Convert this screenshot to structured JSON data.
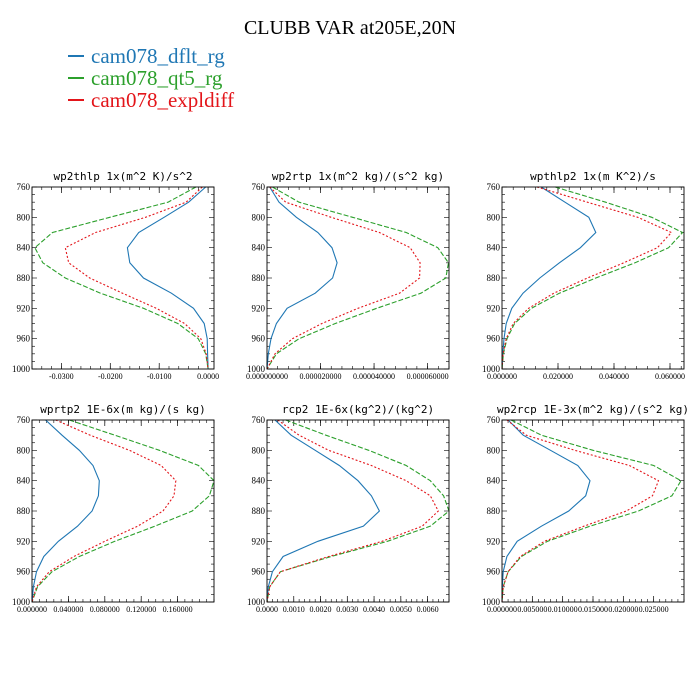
{
  "title": "CLUBB VAR at205E,20N",
  "legend": [
    {
      "label": "cam078_dflt_rg",
      "color": "#1f77b4"
    },
    {
      "label": "cam078_qt5_rg",
      "color": "#2ca02c"
    },
    {
      "label": "cam078_expldiff",
      "color": "#e3151a"
    }
  ],
  "chart_data": [
    {
      "type": "line",
      "title": "wp2thlp  1x(m^2 K)/s^2",
      "ylim": [
        760,
        1000
      ],
      "yticks": [
        760,
        800,
        840,
        880,
        920,
        960,
        1000
      ],
      "y_inverted": true,
      "xlim": [
        -0.036,
        0.0012
      ],
      "xticks": [
        -0.03,
        -0.02,
        -0.01,
        0.0
      ],
      "xtick_labels": [
        "-0.0300",
        "-0.0200",
        "-0.0100",
        "0.0000"
      ],
      "y": [
        760,
        780,
        800,
        820,
        840,
        860,
        880,
        900,
        920,
        940,
        960,
        980,
        1000
      ],
      "series": [
        {
          "name": "cam078_dflt_rg",
          "values": [
            -0.0005,
            -0.004,
            -0.009,
            -0.0142,
            -0.0165,
            -0.016,
            -0.0132,
            -0.0075,
            -0.003,
            -0.0008,
            -0.0002,
            -0.0001,
            0.0
          ]
        },
        {
          "name": "cam078_qt5_rg",
          "values": [
            -0.0025,
            -0.0082,
            -0.0201,
            -0.0318,
            -0.0354,
            -0.0338,
            -0.0292,
            -0.022,
            -0.0132,
            -0.0062,
            -0.002,
            -0.0005,
            0.0
          ]
        },
        {
          "name": "cam078_expldiff",
          "values": [
            -0.0012,
            -0.0045,
            -0.0128,
            -0.023,
            -0.0292,
            -0.0285,
            -0.0242,
            -0.0175,
            -0.0106,
            -0.0048,
            -0.0015,
            -0.0004,
            0.0
          ]
        }
      ]
    },
    {
      "type": "line",
      "title": "wp2rtp  1x(m^2 kg)/(s^2 kg)",
      "ylim": [
        760,
        1000
      ],
      "yticks": [
        760,
        800,
        840,
        880,
        920,
        960,
        1000
      ],
      "y_inverted": true,
      "xlim": [
        0.0,
        6.8e-05
      ],
      "xticks": [
        0.0,
        2e-05,
        4e-05,
        6e-05
      ],
      "xtick_labels": [
        "0.000000000",
        "0.000020000",
        "0.000040000",
        "0.000060000"
      ],
      "y": [
        760,
        780,
        800,
        820,
        840,
        860,
        880,
        900,
        920,
        940,
        960,
        980,
        1000
      ],
      "series": [
        {
          "name": "cam078_dflt_rg",
          "values": [
            1e-06,
            4.5e-06,
            1.1e-05,
            1.9e-05,
            2.43e-05,
            2.62e-05,
            2.45e-05,
            1.8e-05,
            7.5e-06,
            3.5e-06,
            1.5e-06,
            5e-07,
            0.0
          ]
        },
        {
          "name": "cam078_qt5_rg",
          "values": [
            2e-06,
            1.2e-05,
            3.2e-05,
            5.2e-05,
            6.38e-05,
            6.78e-05,
            6.68e-05,
            5.75e-05,
            4.1e-05,
            2.55e-05,
            1.2e-05,
            3.5e-06,
            0.0
          ]
        },
        {
          "name": "cam078_expldiff",
          "values": [
            1e-06,
            7e-06,
            2.4e-05,
            4.2e-05,
            5.35e-05,
            5.72e-05,
            5.7e-05,
            4.95e-05,
            3.4e-05,
            2.05e-05,
            9.5e-06,
            3e-06,
            0.0
          ]
        }
      ]
    },
    {
      "type": "line",
      "title": "wpthlp2  1x(m K^2)/s",
      "ylim": [
        760,
        1000
      ],
      "yticks": [
        760,
        800,
        840,
        880,
        920,
        960,
        1000
      ],
      "y_inverted": true,
      "xlim": [
        0.0,
        0.065
      ],
      "xticks": [
        0.0,
        0.02,
        0.04,
        0.06
      ],
      "xtick_labels": [
        "0.000000",
        "0.020000",
        "0.040000",
        "0.060000"
      ],
      "y": [
        760,
        780,
        800,
        820,
        840,
        860,
        880,
        900,
        920,
        940,
        960,
        980,
        1000
      ],
      "series": [
        {
          "name": "cam078_dflt_rg",
          "values": [
            0.014,
            0.0225,
            0.031,
            0.0335,
            0.028,
            0.0205,
            0.0135,
            0.0075,
            0.0035,
            0.0015,
            0.0007,
            0.0003,
            0.0
          ]
        },
        {
          "name": "cam078_qt5_rg",
          "values": [
            0.019,
            0.037,
            0.0535,
            0.0645,
            0.0595,
            0.0475,
            0.0335,
            0.0205,
            0.0105,
            0.0045,
            0.0018,
            0.0005,
            0.0
          ]
        },
        {
          "name": "cam078_expldiff",
          "values": [
            0.0125,
            0.0305,
            0.0485,
            0.0605,
            0.0555,
            0.0435,
            0.0305,
            0.0185,
            0.0095,
            0.004,
            0.0015,
            0.0004,
            0.0
          ]
        }
      ]
    },
    {
      "type": "line",
      "title": "wprtp2  1E-6x(m kg)/(s kg)",
      "ylim": [
        760,
        1000
      ],
      "yticks": [
        760,
        800,
        840,
        880,
        920,
        960,
        1000
      ],
      "y_inverted": true,
      "xlim": [
        0.0,
        0.2
      ],
      "xticks": [
        0.0,
        0.04,
        0.08,
        0.12,
        0.16
      ],
      "xtick_labels": [
        "0.000000",
        "0.040000",
        "0.080000",
        "0.120000",
        "0.160000"
      ],
      "y": [
        760,
        780,
        800,
        820,
        840,
        860,
        880,
        900,
        920,
        940,
        960,
        980,
        1000
      ],
      "series": [
        {
          "name": "cam078_dflt_rg",
          "values": [
            0.015,
            0.033,
            0.052,
            0.067,
            0.074,
            0.073,
            0.066,
            0.05,
            0.029,
            0.013,
            0.005,
            0.0015,
            0.0
          ]
        },
        {
          "name": "cam078_qt5_rg",
          "values": [
            0.041,
            0.091,
            0.14,
            0.183,
            0.2,
            0.195,
            0.176,
            0.135,
            0.091,
            0.052,
            0.022,
            0.006,
            0.0
          ]
        },
        {
          "name": "cam078_expldiff",
          "values": [
            0.026,
            0.064,
            0.107,
            0.142,
            0.158,
            0.156,
            0.144,
            0.116,
            0.08,
            0.046,
            0.019,
            0.005,
            0.0
          ]
        }
      ]
    },
    {
      "type": "line",
      "title": "rcp2  1E-6x(kg^2)/(kg^2)",
      "ylim": [
        760,
        1000
      ],
      "yticks": [
        760,
        800,
        840,
        880,
        920,
        960,
        1000
      ],
      "y_inverted": true,
      "xlim": [
        0.0,
        0.0068
      ],
      "xticks": [
        0.0,
        0.001,
        0.002,
        0.003,
        0.004,
        0.005,
        0.006
      ],
      "xtick_labels": [
        "0.0000",
        "0.0010",
        "0.0020",
        "0.0030",
        "0.0040",
        "0.0050",
        "0.0060"
      ],
      "y": [
        760,
        780,
        800,
        820,
        840,
        860,
        880,
        900,
        920,
        940,
        960,
        980,
        1000
      ],
      "series": [
        {
          "name": "cam078_dflt_rg",
          "values": [
            0.0003,
            0.0009,
            0.0018,
            0.0027,
            0.0034,
            0.0039,
            0.0042,
            0.0036,
            0.0019,
            0.0006,
            0.0002,
            5e-05,
            0.0
          ]
        },
        {
          "name": "cam078_qt5_rg",
          "values": [
            0.0007,
            0.0022,
            0.0038,
            0.0052,
            0.0061,
            0.0066,
            0.0068,
            0.0061,
            0.0045,
            0.0024,
            0.0005,
            0.0001,
            0.0
          ]
        },
        {
          "name": "cam078_expldiff",
          "values": [
            0.0004,
            0.0012,
            0.0023,
            0.0039,
            0.0052,
            0.0061,
            0.0064,
            0.0058,
            0.0043,
            0.0023,
            0.0005,
            0.0001,
            0.0
          ]
        }
      ]
    },
    {
      "type": "line",
      "title": "wp2rcp  1E-3x(m^2 kg)/(s^2 kg)",
      "ylim": [
        760,
        1000
      ],
      "yticks": [
        760,
        800,
        840,
        880,
        920,
        960,
        1000
      ],
      "y_inverted": true,
      "xlim": [
        0.0,
        0.03
      ],
      "xticks": [
        0.0,
        0.005,
        0.01,
        0.015,
        0.02,
        0.025
      ],
      "xtick_labels": [
        "0.000000",
        "0.005000",
        "0.010000",
        "0.015000",
        "0.020000",
        "0.025000"
      ],
      "y": [
        760,
        780,
        800,
        820,
        840,
        860,
        880,
        900,
        920,
        940,
        960,
        980,
        1000
      ],
      "series": [
        {
          "name": "cam078_dflt_rg",
          "values": [
            0.001,
            0.0035,
            0.008,
            0.0125,
            0.0145,
            0.0138,
            0.011,
            0.0065,
            0.0025,
            0.0008,
            0.0002,
            5e-05,
            0.0
          ]
        },
        {
          "name": "cam078_qt5_rg",
          "values": [
            0.0015,
            0.0065,
            0.015,
            0.025,
            0.0295,
            0.028,
            0.0225,
            0.0145,
            0.0075,
            0.0032,
            0.001,
            0.0002,
            0.0
          ]
        },
        {
          "name": "cam078_expldiff",
          "values": [
            0.0008,
            0.004,
            0.012,
            0.021,
            0.0258,
            0.0248,
            0.0205,
            0.0135,
            0.007,
            0.003,
            0.001,
            0.0002,
            0.0
          ]
        }
      ]
    }
  ]
}
